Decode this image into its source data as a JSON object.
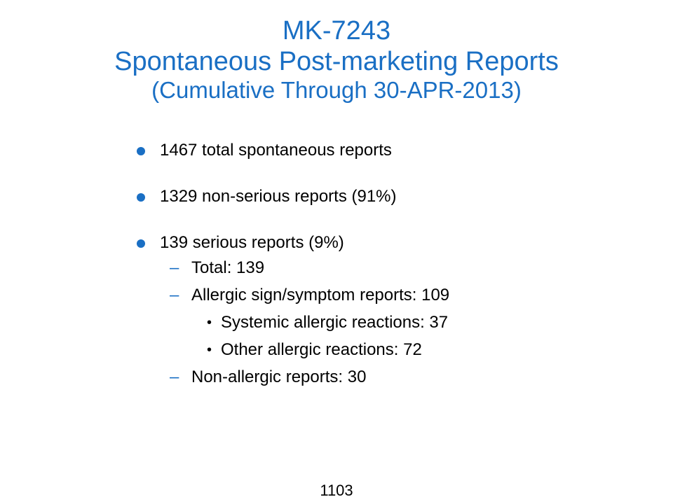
{
  "slide": {
    "title": {
      "line1": "MK-7243",
      "line2": "Spontaneous Post-marketing Reports",
      "line3": "(Cumulative Through 30-APR-2013)"
    },
    "bullets": [
      {
        "text": "1467 total spontaneous reports"
      },
      {
        "text": "1329 non-serious reports (91%)"
      },
      {
        "text": "139 serious reports (9%)",
        "sub_items": [
          {
            "dash": "–",
            "text": "Total: 139"
          },
          {
            "dash": "–",
            "text": "Allergic sign/symptom reports: 109",
            "sub_items": [
              {
                "marker": "•",
                "text": "Systemic allergic reactions: 37"
              },
              {
                "marker": "•",
                "text": "Other allergic reactions: 72"
              }
            ]
          },
          {
            "dash": "–",
            "text": "Non-allergic reports: 30"
          }
        ]
      }
    ],
    "page_number": "1103"
  },
  "colors": {
    "accent": "#1a6fc4",
    "text": "#000000",
    "background": "#ffffff"
  }
}
